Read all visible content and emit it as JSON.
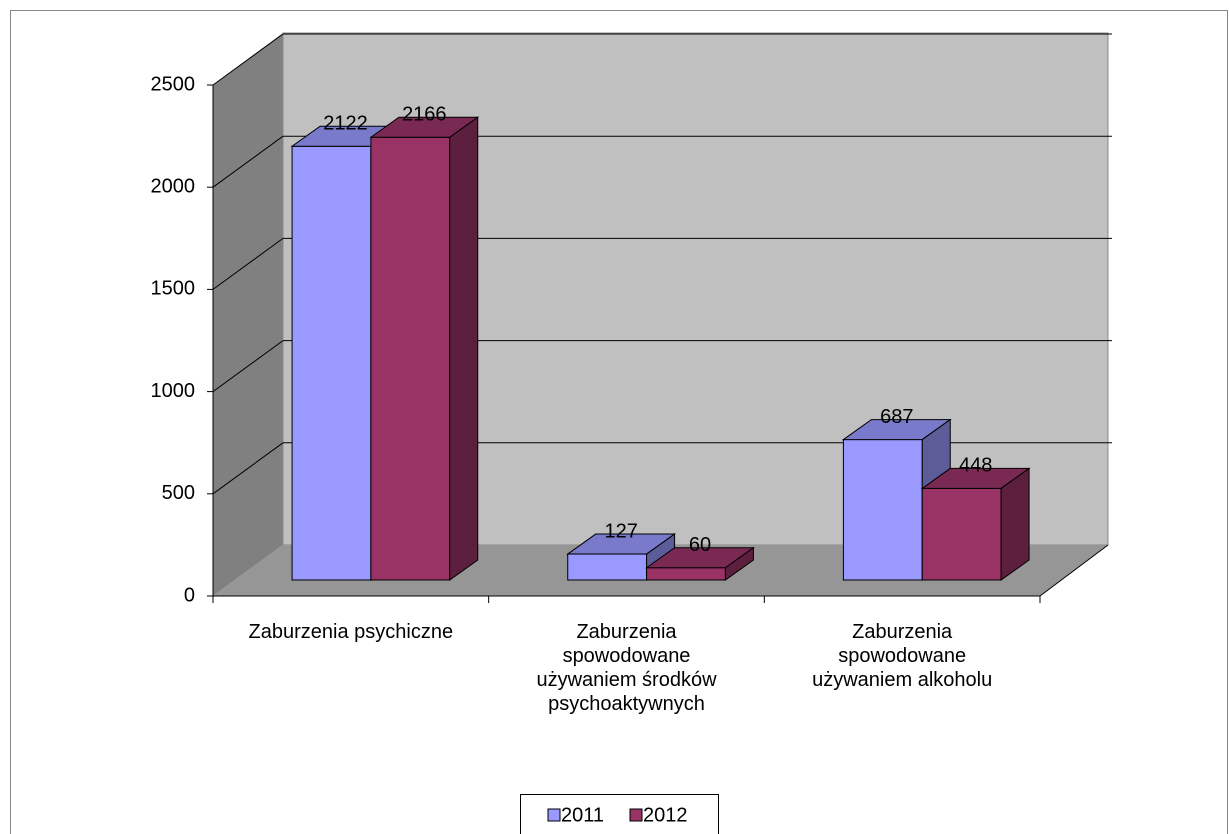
{
  "chart_data": {
    "type": "bar3d",
    "categories": [
      "Zaburzenia psychiczne",
      "Zaburzenia spowodowane używaniem środków psychoaktywnych",
      "Zaburzenia spowodowane używaniem alkoholu"
    ],
    "series": [
      {
        "name": "2011",
        "color": "#9999ff",
        "values": [
          2122,
          127,
          687
        ]
      },
      {
        "name": "2012",
        "color": "#993366",
        "values": [
          2166,
          60,
          448
        ]
      }
    ],
    "ylim": [
      0,
      2500
    ],
    "yticks": [
      0,
      500,
      1000,
      1500,
      2000,
      2500
    ],
    "grid": true,
    "legend": "bottom"
  }
}
